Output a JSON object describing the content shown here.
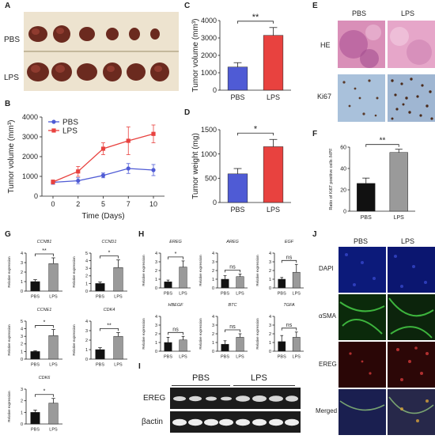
{
  "panel_labels": [
    "A",
    "B",
    "C",
    "D",
    "E",
    "F",
    "G",
    "H",
    "I",
    "J"
  ],
  "panel_a": {
    "rows": [
      "PBS",
      "LPS"
    ]
  },
  "panel_e": {
    "cols": [
      "PBS",
      "LPS"
    ],
    "rows": [
      "HE",
      "Ki67"
    ]
  },
  "panel_i": {
    "groups": [
      "PBS",
      "LPS"
    ],
    "rows": [
      "EREG",
      "βactin"
    ]
  },
  "panel_j": {
    "cols": [
      "PBS",
      "LPS"
    ],
    "rows": [
      "DAPI",
      "αSMA",
      "EREG",
      "Merged"
    ]
  },
  "colors": {
    "pbs_blue": "#4f5bd5",
    "lps_red": "#e8423f",
    "black_bar": "#111111",
    "gray_bar": "#9a9a9a"
  },
  "chart_data": [
    {
      "id": "B",
      "type": "line",
      "xlabel": "Time (Days)",
      "ylabel": "Tumor volume (mm³)",
      "x": [
        0,
        2,
        5,
        7,
        10
      ],
      "ylim": [
        0,
        4000
      ],
      "yticks": [
        0,
        1000,
        2000,
        3000,
        4000
      ],
      "legend": "top-left",
      "series": [
        {
          "name": "PBS",
          "values": [
            700,
            780,
            1050,
            1400,
            1320
          ],
          "err": [
            100,
            150,
            120,
            250,
            280
          ],
          "color": "#4f5bd5"
        },
        {
          "name": "LPS",
          "values": [
            720,
            1250,
            2400,
            2800,
            3150
          ],
          "err": [
            100,
            250,
            300,
            700,
            450
          ],
          "color": "#e8423f"
        }
      ]
    },
    {
      "id": "C",
      "type": "bar",
      "ylabel": "Tumor volume (mm³)",
      "categories": [
        "PBS",
        "LPS"
      ],
      "values": [
        1330,
        3150
      ],
      "err": [
        250,
        450
      ],
      "colors": [
        "#4f5bd5",
        "#e8423f"
      ],
      "ylim": [
        0,
        4000
      ],
      "yticks": [
        0,
        1000,
        2000,
        3000,
        4000
      ],
      "sig": "**"
    },
    {
      "id": "D",
      "type": "bar",
      "ylabel": "Tumor weight (mg)",
      "categories": [
        "PBS",
        "LPS"
      ],
      "values": [
        590,
        1150
      ],
      "err": [
        110,
        150
      ],
      "colors": [
        "#4f5bd5",
        "#e8423f"
      ],
      "ylim": [
        0,
        1500
      ],
      "yticks": [
        0,
        500,
        1000,
        1500
      ],
      "sig": "*"
    },
    {
      "id": "F",
      "type": "bar",
      "ylabel": "Ratio of Ki67 positive cells /HPF",
      "categories": [
        "PBS",
        "LPS"
      ],
      "values": [
        26,
        55
      ],
      "err": [
        5,
        3
      ],
      "colors": [
        "#111111",
        "#9a9a9a"
      ],
      "ylim": [
        0,
        60
      ],
      "yticks": [
        0,
        20,
        40,
        60
      ],
      "sig": "**"
    },
    {
      "id": "G",
      "type": "bar",
      "group": "G",
      "panels": [
        {
          "title": "CCNB1",
          "categories": [
            "PBS",
            "LPS"
          ],
          "values": [
            1.0,
            2.9
          ],
          "err": [
            0.2,
            0.6
          ],
          "ylim": [
            0,
            4
          ],
          "yticks": [
            0,
            1,
            2,
            3,
            4
          ],
          "sig": "**",
          "ylabel": "Relative expression"
        },
        {
          "title": "CCND1",
          "categories": [
            "PBS",
            "LPS"
          ],
          "values": [
            1.0,
            3.1
          ],
          "err": [
            0.2,
            1.0
          ],
          "ylim": [
            0,
            5
          ],
          "yticks": [
            0,
            1,
            2,
            3,
            4,
            5
          ],
          "sig": "*",
          "ylabel": "Relative expression"
        },
        {
          "title": "CCNE1",
          "categories": [
            "PBS",
            "LPS"
          ],
          "values": [
            1.0,
            3.1
          ],
          "err": [
            0.1,
            0.8
          ],
          "ylim": [
            0,
            5
          ],
          "yticks": [
            0,
            1,
            2,
            3,
            4,
            5
          ],
          "sig": "*",
          "ylabel": "Relative expression"
        },
        {
          "title": "CDK4",
          "categories": [
            "PBS",
            "LPS"
          ],
          "values": [
            1.0,
            2.4
          ],
          "err": [
            0.2,
            0.4
          ],
          "ylim": [
            0,
            4
          ],
          "yticks": [
            0,
            1,
            2,
            3,
            4
          ],
          "sig": "**",
          "ylabel": "Relative expression"
        },
        {
          "title": "CDK6",
          "categories": [
            "PBS",
            "LPS"
          ],
          "values": [
            1.0,
            1.8
          ],
          "err": [
            0.2,
            0.4
          ],
          "ylim": [
            0,
            3
          ],
          "yticks": [
            0,
            1,
            2,
            3
          ],
          "sig": "*",
          "ylabel": "Relative expression"
        }
      ]
    },
    {
      "id": "H",
      "type": "bar",
      "group": "H",
      "panels": [
        {
          "title": "EREG",
          "categories": [
            "PBS",
            "LPS"
          ],
          "values": [
            0.7,
            2.4
          ],
          "err": [
            0.2,
            0.7
          ],
          "ylim": [
            0,
            4
          ],
          "yticks": [
            0,
            1,
            2,
            3,
            4
          ],
          "sig": "*",
          "ylabel": "Relative expression"
        },
        {
          "title": "AREG",
          "categories": [
            "PBS",
            "LPS"
          ],
          "values": [
            1.0,
            1.3
          ],
          "err": [
            0.4,
            0.3
          ],
          "ylim": [
            0,
            4
          ],
          "yticks": [
            0,
            1,
            2,
            3,
            4
          ],
          "sig": "ns",
          "ylabel": "Relative expression"
        },
        {
          "title": "EGF",
          "categories": [
            "PBS",
            "LPS"
          ],
          "values": [
            1.0,
            1.8
          ],
          "err": [
            0.2,
            0.9
          ],
          "ylim": [
            0,
            4
          ],
          "yticks": [
            0,
            1,
            2,
            3,
            4
          ],
          "sig": "ns",
          "ylabel": "Relative expression"
        },
        {
          "title": "HBEGF",
          "categories": [
            "PBS",
            "LPS"
          ],
          "values": [
            1.0,
            1.3
          ],
          "err": [
            0.6,
            0.4
          ],
          "ylim": [
            0,
            4
          ],
          "yticks": [
            0,
            1,
            2,
            3,
            4
          ],
          "sig": "ns",
          "ylabel": "Relative expression"
        },
        {
          "title": "BTC",
          "categories": [
            "PBS",
            "LPS"
          ],
          "values": [
            0.8,
            1.6
          ],
          "err": [
            0.4,
            0.4
          ],
          "ylim": [
            0,
            4
          ],
          "yticks": [
            0,
            1,
            2,
            3,
            4
          ],
          "sig": "ns",
          "ylabel": "Relative expression"
        },
        {
          "title": "TGFA",
          "categories": [
            "PBS",
            "LPS"
          ],
          "values": [
            1.1,
            1.6
          ],
          "err": [
            0.7,
            0.6
          ],
          "ylim": [
            0,
            4
          ],
          "yticks": [
            0,
            1,
            2,
            3,
            4
          ],
          "sig": "ns",
          "ylabel": "Relative expression"
        }
      ]
    }
  ]
}
